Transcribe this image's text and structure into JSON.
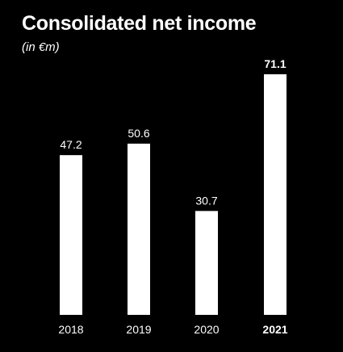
{
  "chart_data": {
    "type": "bar",
    "title": "Consolidated net income",
    "subtitle": "(in €m)",
    "categories": [
      "2018",
      "2019",
      "2020",
      "2021"
    ],
    "values": [
      47.2,
      50.6,
      30.7,
      71.1
    ],
    "value_labels": [
      "47.2",
      "50.6",
      "30.7",
      "71.1"
    ],
    "highlight_category": "2021",
    "ylim": [
      0,
      71.1
    ],
    "grid": false,
    "legend": "none",
    "xlabel": "",
    "ylabel": "",
    "colors": {
      "background": "#000000",
      "bar": "#ffffff",
      "text": "#ffffff"
    }
  }
}
